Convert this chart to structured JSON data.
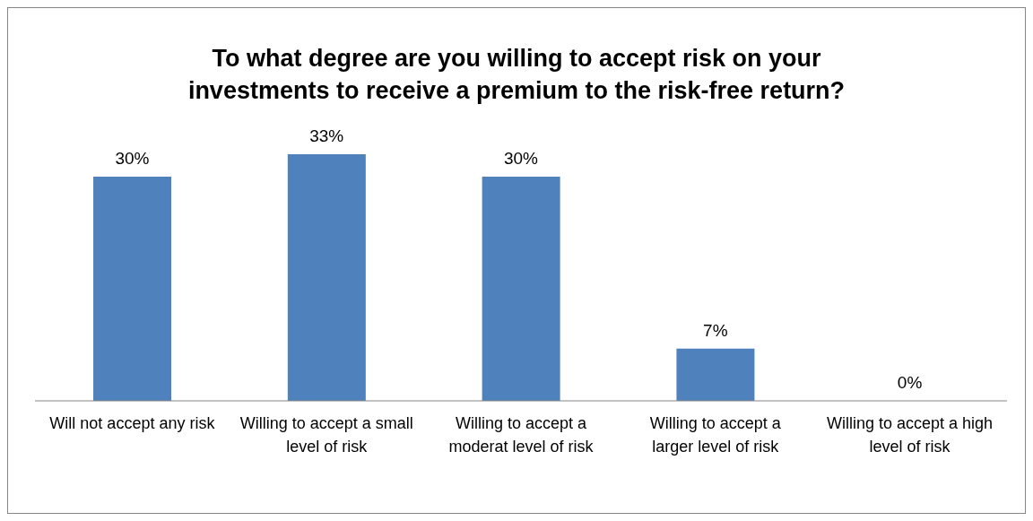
{
  "chart_data": {
    "type": "bar",
    "title": "To what degree are you willing to accept risk on your investments to receive a premium to the risk-free return?",
    "categories": [
      "Will not accept any risk",
      "Willing to accept a small level of risk",
      "Willing to accept a moderat level of risk",
      "Willing to accept a larger level of risk",
      "Willing to accept a high level of risk"
    ],
    "values": [
      30,
      33,
      30,
      7,
      0
    ],
    "value_labels": [
      "30%",
      "33%",
      "30%",
      "7%",
      "0%"
    ],
    "color": "#4f81bd"
  }
}
